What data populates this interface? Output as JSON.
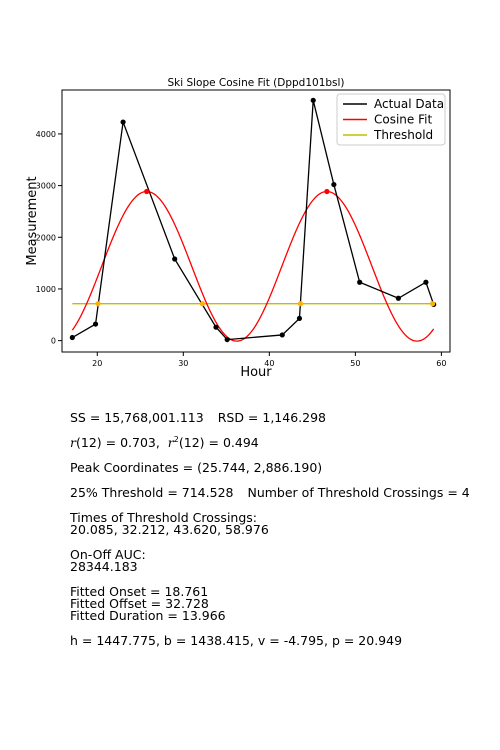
{
  "chart_data": {
    "type": "line",
    "title": "Ski Slope Cosine Fit (Dppd101bsl)",
    "xlabel": "Hour",
    "ylabel": "Measurement",
    "xlim": [
      15.9,
      61.0
    ],
    "ylim": [
      -220,
      4850
    ],
    "xticks": [
      20,
      30,
      40,
      50,
      60
    ],
    "yticks": [
      0,
      1000,
      2000,
      3000,
      4000
    ],
    "grid": false,
    "legend_position": "top-right",
    "series": [
      {
        "name": "Actual Data",
        "color": "#000000",
        "x": [
          17.1,
          19.8,
          23.0,
          29.0,
          33.8,
          35.1,
          41.5,
          43.5,
          45.1,
          47.5,
          50.5,
          55.0,
          58.2,
          59.1
        ],
        "y": [
          60,
          320,
          4230,
          1580,
          260,
          20,
          110,
          430,
          4650,
          3020,
          1130,
          820,
          1130,
          700
        ]
      },
      {
        "name": "Cosine Fit",
        "color": "#ff0000",
        "model": {
          "h": 1447.775,
          "b": 1438.415,
          "v": -4.795,
          "p": 20.949
        },
        "x_range": [
          17.1,
          59.1
        ]
      },
      {
        "name": "Threshold",
        "color": "#bfbf00",
        "y": 714.528,
        "x_range": [
          17.1,
          59.1
        ]
      }
    ],
    "peaks": {
      "color": "#ff0000",
      "x": [
        25.744,
        46.693
      ],
      "y": [
        2886.19,
        2886.19
      ]
    },
    "crossings": {
      "color": "#ffb000",
      "x": [
        20.085,
        32.212,
        43.62,
        58.976
      ],
      "y": 714.528
    }
  },
  "stats": {
    "ss": "SS = 15,768,001.113",
    "rsd": "RSD = 1,146.298",
    "r_value": "= 0.703,",
    "r2_value": "= 0.494",
    "peak": "Peak Coordinates = (25.744, 2,886.190)",
    "threshold": "25% Threshold = 714.528",
    "crossings_count": "Number of Threshold Crossings = 4",
    "times_label": "Times of Threshold Crossings:",
    "times_values": "20.085, 32.212, 43.620, 58.976",
    "auc_label": "On-Off AUC:",
    "auc_value": "28344.183",
    "onset": "Fitted Onset = 18.761",
    "offset": "Fitted Offset = 32.728",
    "duration": "Fitted Duration = 13.966",
    "params": "h = 1447.775, b = 1438.415, v = -4.795, p = 20.949"
  }
}
